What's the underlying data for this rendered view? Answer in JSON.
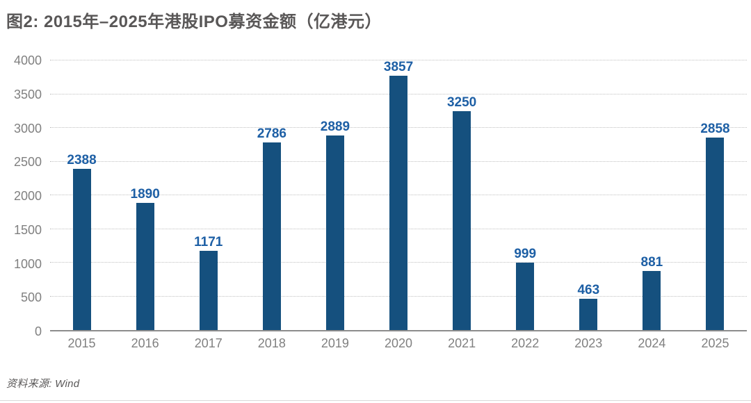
{
  "chart_data": {
    "type": "bar",
    "title": "图2: 2015年–2025年港股IPO募资金额（亿港元）",
    "categories": [
      "2015",
      "2016",
      "2017",
      "2018",
      "2019",
      "2020",
      "2021",
      "2022",
      "2023",
      "2024",
      "2025"
    ],
    "values": [
      2388,
      1890,
      1171,
      2786,
      2889,
      3857,
      3250,
      999,
      463,
      881,
      2858
    ],
    "xlabel": "",
    "ylabel": "",
    "ylim": [
      0,
      4000
    ],
    "ytick_step": 500,
    "legend": "none",
    "grid": "horizontal dotted",
    "value_labels": "above bars",
    "colors": {
      "bar": "#15507e",
      "value_label": "#1d5fa5",
      "axis_label": "#808080",
      "title": "#595757",
      "gridline": "#c0c0c0",
      "baseline": "#8c8c8c"
    }
  },
  "source_note": "资料来源: Wind"
}
